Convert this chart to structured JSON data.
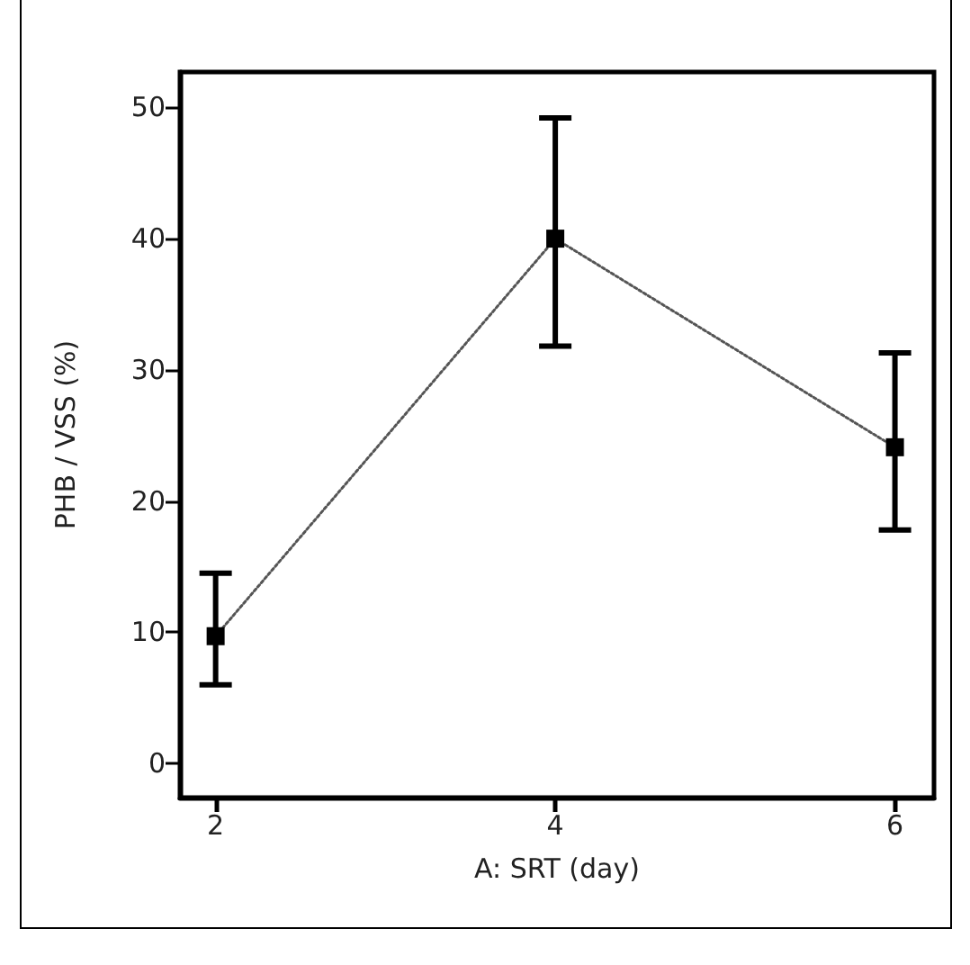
{
  "chart_data": {
    "type": "line",
    "xlabel": "A: SRT (day)",
    "ylabel": "PHB / VSS (%)",
    "x": [
      2,
      4,
      6
    ],
    "series": [
      {
        "color": "#000000",
        "values": [
          9.7,
          40,
          24.1
        ],
        "errors": [
          [
            6.0,
            14.5
          ],
          [
            31.8,
            49.2
          ],
          [
            17.8,
            31.3
          ]
        ]
      }
    ],
    "xlim": [
      1.79,
      6.23
    ],
    "xticks": [
      2,
      4,
      6
    ],
    "ylim": [
      -2.6,
      52.7
    ],
    "yticks": [
      0,
      10,
      20,
      30,
      40,
      50
    ],
    "marker": "square",
    "line_style": "dotted"
  }
}
